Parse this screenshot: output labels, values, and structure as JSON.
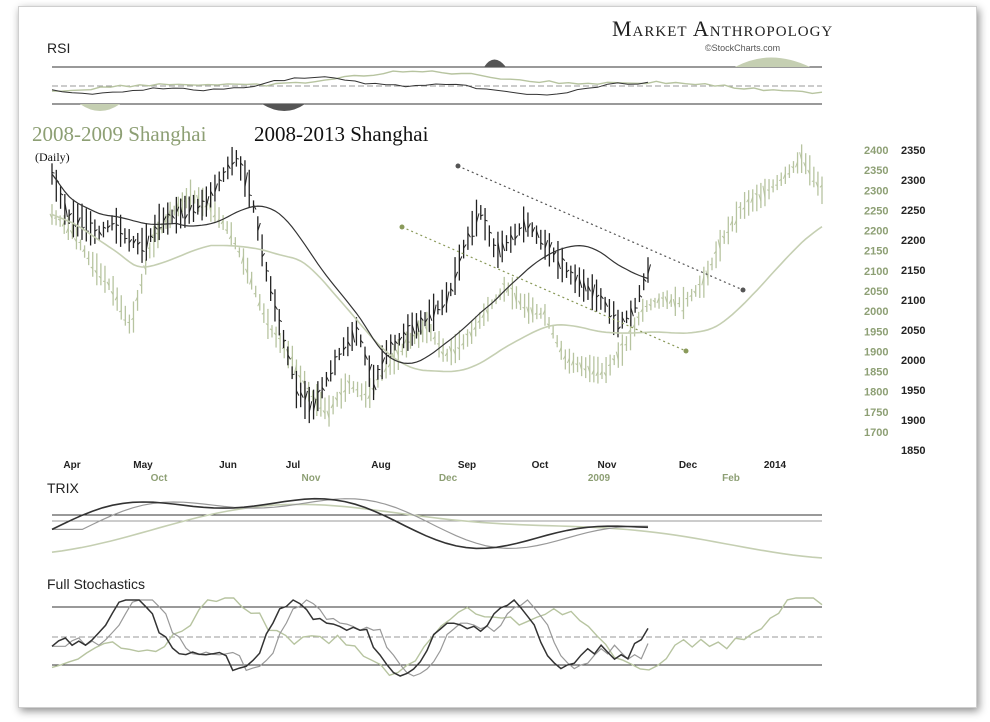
{
  "brand": {
    "name": "Market Anthropology",
    "credit": "©StockCharts.com"
  },
  "panels": {
    "rsi_label": "RSI",
    "trix_label": "TRIX",
    "stoch_label": "Full Stochastics"
  },
  "titles": {
    "series_a": "2008-2009 Shanghai",
    "series_b": "2008-2013 Shanghai",
    "interval": "(Daily)"
  },
  "colors": {
    "series_a": "#8d9f74",
    "series_b": "#111111",
    "trend_b": "#555555",
    "trend_a": "#8a9a5a"
  },
  "chart_data": {
    "type": "line",
    "x_labels_2013": [
      "Apr",
      "May",
      "Jun",
      "Jul",
      "Aug",
      "Sep",
      "Oct",
      "Nov",
      "Dec",
      "2014"
    ],
    "x_labels_2008": [
      "Oct",
      "Nov",
      "Dec",
      "2009",
      "Feb"
    ],
    "y_axis_2008_2009": [
      2400,
      2350,
      2300,
      2250,
      2200,
      2150,
      2100,
      2050,
      2000,
      1950,
      1900,
      1850,
      1800,
      1750,
      1700
    ],
    "y_axis_2008_2013": [
      2350,
      2300,
      2250,
      2200,
      2150,
      2100,
      2050,
      2000,
      1950,
      1900,
      1850
    ],
    "series": [
      {
        "name": "2008-2013 Shanghai",
        "values": [
          2310,
          2240,
          2230,
          2210,
          2230,
          2200,
          2190,
          2230,
          2240,
          2250,
          2260,
          2300,
          2340,
          2280,
          2150,
          2050,
          1950,
          1920,
          1970,
          2020,
          2050,
          1960,
          2020,
          2040,
          2060,
          2080,
          2110,
          2190,
          2250,
          2180,
          2200,
          2230,
          2200,
          2170,
          2140,
          2120,
          2100,
          2060,
          2080,
          2150
        ]
      },
      {
        "name": "2008-2009 Shanghai",
        "values": [
          2240,
          2200,
          2120,
          2060,
          1960,
          2160,
          2240,
          2290,
          2260,
          2200,
          2090,
          1960,
          1890,
          1800,
          1750,
          1820,
          1790,
          1860,
          1920,
          1960,
          1890,
          1930,
          2000,
          2060,
          2010,
          1990,
          1880,
          1860,
          1850,
          1910,
          2010,
          2030,
          2020,
          2070,
          2180,
          2260,
          2290,
          2330,
          2380,
          2300
        ]
      }
    ]
  }
}
